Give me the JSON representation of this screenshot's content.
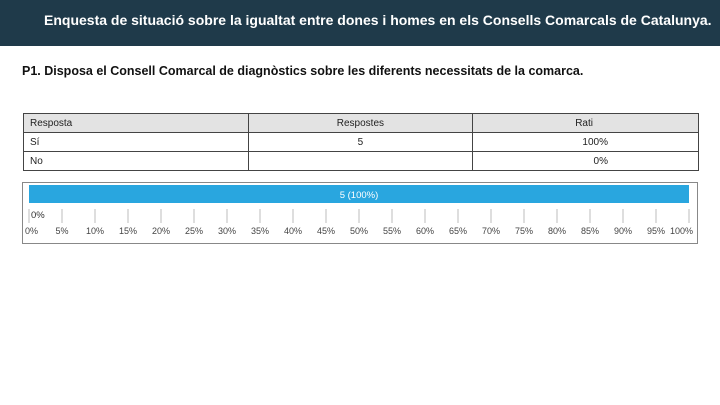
{
  "header": {
    "title": "Enquesta de situació sobre la igualtat entre dones i homes en els Consells Comarcals de Catalunya."
  },
  "question": {
    "text": "P1. Disposa el Consell Comarcal de diagnòstics sobre les diferents necessitats de la comarca."
  },
  "table": {
    "headers": [
      "Resposta",
      "Respostes",
      "Rati"
    ],
    "rows": [
      {
        "answer": "Sí",
        "count": "5",
        "ratio": "100%"
      },
      {
        "answer": "No",
        "count": "",
        "ratio": "0%"
      }
    ]
  },
  "colors": {
    "header_bg": "#1f3a4a",
    "bar": "#29a6df"
  },
  "chart_data": {
    "type": "bar",
    "orientation": "horizontal",
    "categories": [
      "Sí",
      "No"
    ],
    "values": [
      100,
      0
    ],
    "data_labels": [
      "5 (100%)",
      "0%"
    ],
    "xlim": [
      0,
      100
    ],
    "x_ticks": [
      "0%",
      "5%",
      "10%",
      "15%",
      "20%",
      "25%",
      "30%",
      "35%",
      "40%",
      "45%",
      "50%",
      "55%",
      "60%",
      "65%",
      "70%",
      "75%",
      "80%",
      "85%",
      "90%",
      "95%",
      "100%"
    ],
    "grid": true,
    "title": "",
    "xlabel": "",
    "ylabel": ""
  }
}
